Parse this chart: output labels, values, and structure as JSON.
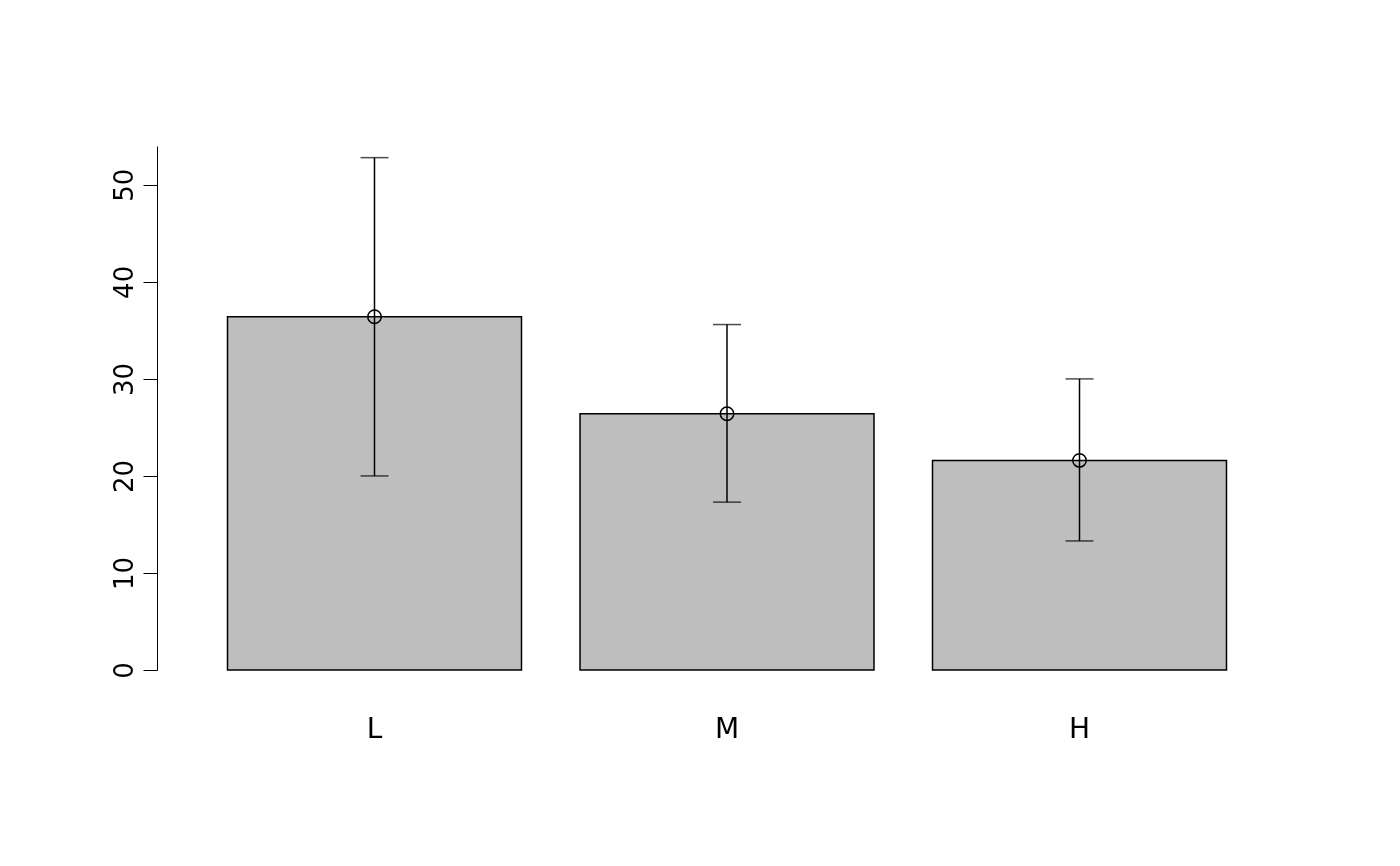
{
  "chart_data": {
    "type": "bar",
    "categories": [
      "L",
      "M",
      "H"
    ],
    "series": [
      {
        "color": "#bebebe",
        "values": [
          36.4,
          26.4,
          21.6
        ],
        "errors": [
          [
            20.0,
            52.8
          ],
          [
            17.3,
            35.6
          ],
          [
            13.3,
            30.0
          ]
        ]
      },
      {
        "type": "scatter",
        "color": "#000000",
        "x": [
          "L",
          "M",
          "H"
        ],
        "values": [
          36.4,
          26.4,
          21.6
        ]
      }
    ],
    "ylim": [
      0,
      54
    ],
    "yticks": [
      0,
      10,
      20,
      30,
      40,
      50
    ],
    "grid": false,
    "marker": "circle"
  }
}
